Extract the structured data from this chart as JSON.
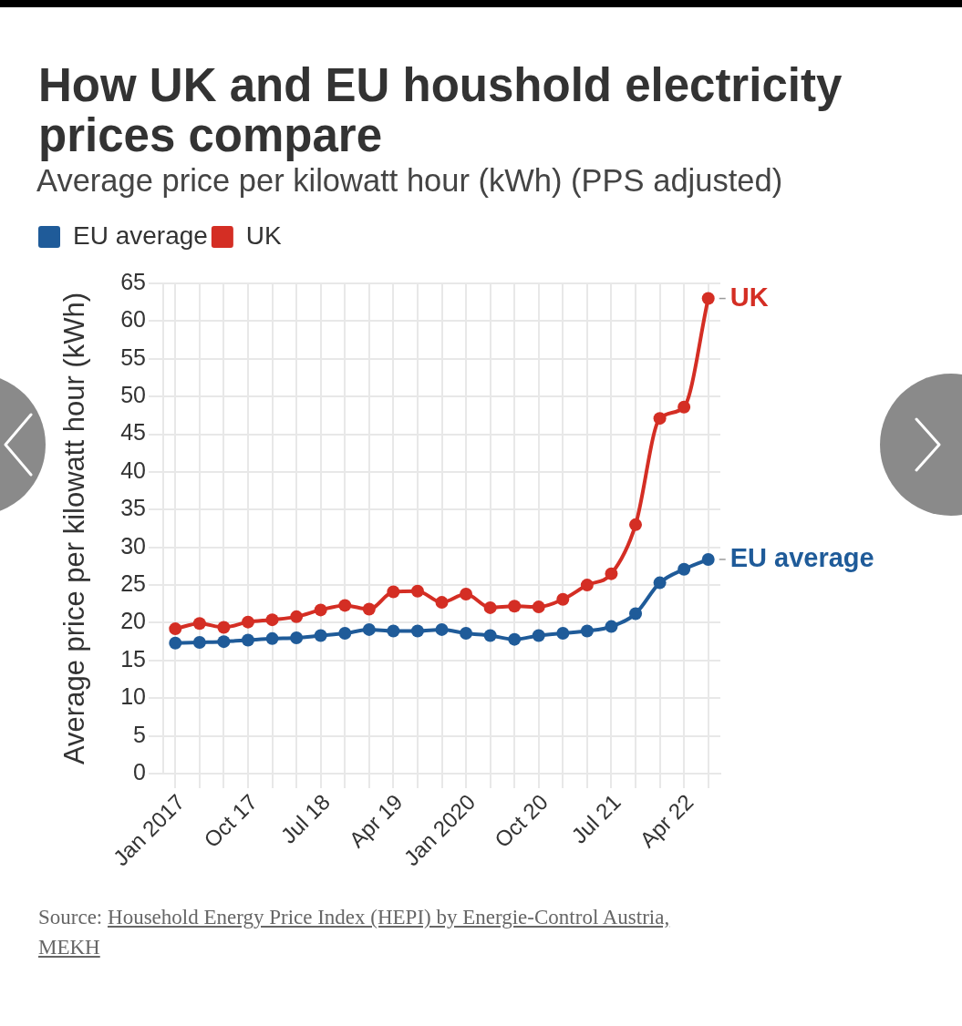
{
  "chart_data": {
    "type": "line",
    "title": "How UK and EU houshold electricity prices compare",
    "subtitle": "Average price per kilowatt hour (kWh) (PPS adjusted)",
    "ylabel": "Average price per kilowatt hour (kWh)",
    "categories": [
      "Jan 2017",
      null,
      null,
      "Oct 17",
      null,
      null,
      "Jul 18",
      null,
      null,
      "Apr 19",
      null,
      null,
      "Jan 2020",
      null,
      null,
      "Oct 20",
      null,
      null,
      "Jul 21",
      null,
      null,
      "Apr 22",
      null
    ],
    "series": [
      {
        "name": "EU average",
        "color": "#1f5b99",
        "values": [
          17.3,
          17.4,
          17.5,
          17.7,
          17.9,
          18.0,
          18.3,
          18.6,
          19.1,
          18.9,
          18.9,
          19.1,
          18.6,
          18.3,
          17.8,
          18.3,
          18.6,
          18.9,
          19.5,
          21.2,
          25.3,
          27.1,
          28.4
        ]
      },
      {
        "name": "UK",
        "color": "#d42e24",
        "values": [
          19.2,
          19.9,
          19.4,
          20.1,
          20.4,
          20.8,
          21.7,
          22.3,
          21.8,
          24.1,
          24.2,
          22.7,
          23.8,
          22.0,
          22.2,
          22.1,
          23.1,
          25.0,
          26.5,
          33.0,
          47.1,
          48.6,
          63.0
        ]
      }
    ],
    "ylim": [
      0,
      65
    ],
    "yticks": [
      0,
      5,
      10,
      15,
      20,
      25,
      30,
      35,
      40,
      45,
      50,
      55,
      60,
      65
    ],
    "grid": true,
    "legend": "top left",
    "marker": "circle",
    "annotations": [
      "Source: Household Energy Price Index (HEPI) by Energie-Control Austria, MEKH"
    ]
  }
}
